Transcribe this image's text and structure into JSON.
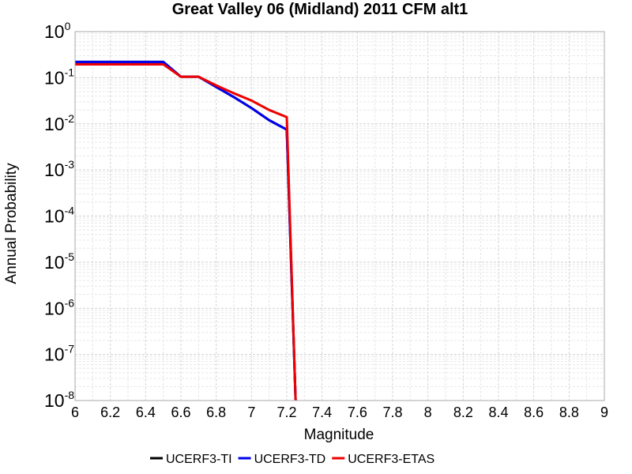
{
  "chart_data": {
    "type": "line",
    "title": "Great Valley 06 (Midland) 2011 CFM alt1",
    "xlabel": "Magnitude",
    "ylabel": "Annual Probability",
    "xlim": [
      6,
      9
    ],
    "ylim": [
      1e-08,
      1
    ],
    "y_scale": "log",
    "grid": true,
    "legend_position": "bottom-center",
    "x_ticks": [
      "6",
      "6.2",
      "6.4",
      "6.6",
      "6.8",
      "7",
      "7.2",
      "7.4",
      "7.6",
      "7.8",
      "8",
      "8.2",
      "8.4",
      "8.6",
      "8.8",
      "9"
    ],
    "y_ticks": [
      {
        "base": "10",
        "exp": "0"
      },
      {
        "base": "10",
        "exp": "-1"
      },
      {
        "base": "10",
        "exp": "-2"
      },
      {
        "base": "10",
        "exp": "-3"
      },
      {
        "base": "10",
        "exp": "-4"
      },
      {
        "base": "10",
        "exp": "-5"
      },
      {
        "base": "10",
        "exp": "-6"
      },
      {
        "base": "10",
        "exp": "-7"
      },
      {
        "base": "10",
        "exp": "-8"
      }
    ],
    "series": [
      {
        "name": "UCERF3-TI",
        "color": "#000000",
        "x": [
          6.0,
          6.5,
          6.6,
          6.7,
          6.8,
          6.9,
          7.0,
          7.1,
          7.2,
          7.25
        ],
        "y": [
          0.22,
          0.22,
          0.105,
          0.105,
          0.063,
          0.038,
          0.022,
          0.012,
          0.0075,
          1e-08
        ]
      },
      {
        "name": "UCERF3-TD",
        "color": "#0000ee",
        "x": [
          6.0,
          6.5,
          6.6,
          6.7,
          6.8,
          6.9,
          7.0,
          7.1,
          7.2,
          7.25
        ],
        "y": [
          0.22,
          0.22,
          0.105,
          0.105,
          0.063,
          0.038,
          0.022,
          0.012,
          0.0075,
          1e-08
        ]
      },
      {
        "name": "UCERF3-ETAS",
        "color": "#ee0000",
        "x": [
          6.0,
          6.5,
          6.6,
          6.7,
          6.8,
          6.9,
          7.0,
          7.1,
          7.2,
          7.25
        ],
        "y": [
          0.195,
          0.195,
          0.105,
          0.105,
          0.068,
          0.046,
          0.032,
          0.02,
          0.014,
          1e-08
        ]
      }
    ]
  }
}
